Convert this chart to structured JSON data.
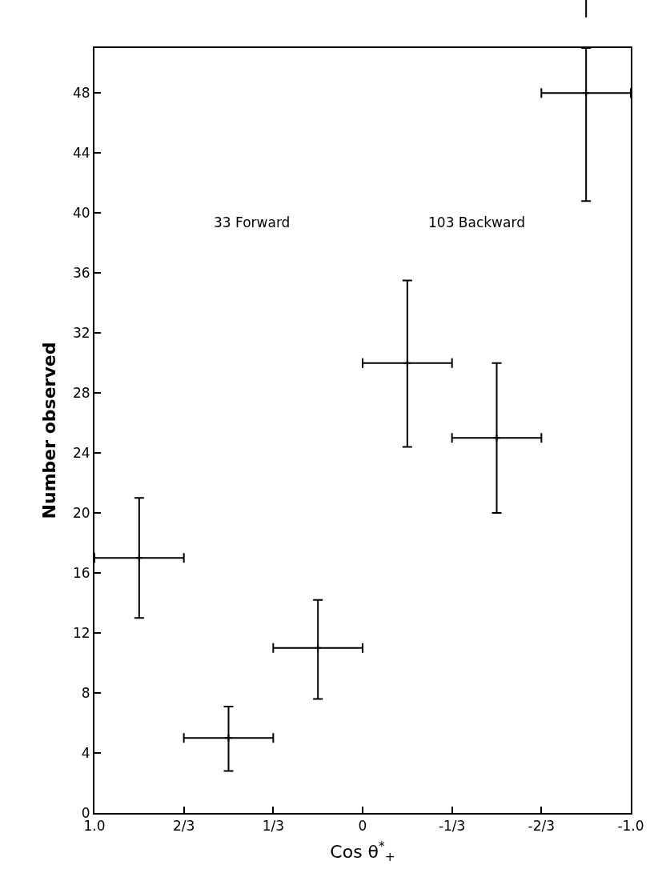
{
  "chart_data": {
    "type": "scatter",
    "xlabel": "Cos θ$^{*}$$_{+}$",
    "ylabel": "Number observed",
    "x": [
      0.8333,
      0.5,
      0.1667,
      -0.1667,
      -0.5,
      -0.8333
    ],
    "values": [
      17,
      5,
      11,
      30,
      25,
      48
    ],
    "errors": [
      [
        13,
        21
      ],
      [
        2.8,
        7.1
      ],
      [
        7.6,
        14.2
      ],
      [
        24.4,
        35.5
      ],
      [
        20,
        30
      ],
      [
        40.8,
        51
      ]
    ],
    "xerrors": [
      0.1667,
      0.1667,
      0.1667,
      0.1667,
      0.1667,
      0.1667
    ],
    "color": "#000000",
    "xlim": [
      1.0,
      -1.0
    ],
    "xticks": [
      {
        "value": 1.0,
        "label": "1.0"
      },
      {
        "value": 0.6667,
        "label": "2/3"
      },
      {
        "value": 0.3333,
        "label": "1/3"
      },
      0,
      {
        "value": -0.3333,
        "label": "-1/3"
      },
      {
        "value": -0.6667,
        "label": "-2/3"
      },
      {
        "value": -1.0,
        "label": "-1.0"
      }
    ],
    "ylim": [
      0,
      51
    ],
    "yticks": [
      0,
      4,
      8,
      12,
      16,
      20,
      24,
      28,
      32,
      36,
      40,
      44,
      48
    ],
    "annotations": [
      "33 Forward",
      "103 Backward"
    ]
  }
}
